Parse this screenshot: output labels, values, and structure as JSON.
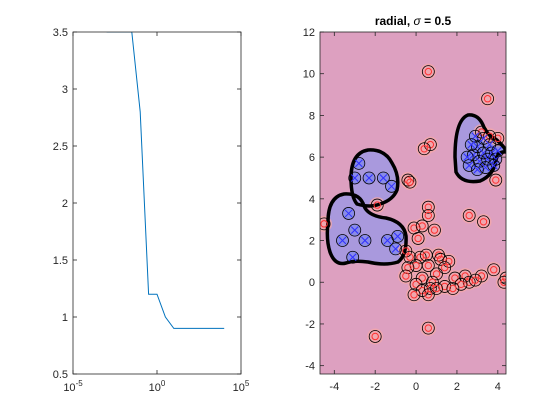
{
  "colors": {
    "line_series": "#0072bd",
    "axes": "#262626",
    "region_positive": "#dda0c0",
    "region_negative": "#a999dd",
    "blob_negative": "#6f7ff0",
    "blob_positive": "#f6a8a8",
    "marker_positive": "#ff3030",
    "marker_negative": "#3030ff",
    "contour": "#000000"
  },
  "chart_data": [
    {
      "type": "line",
      "xscale": "log",
      "xlim": [
        1e-05,
        100000.0
      ],
      "ylim": [
        0.5,
        3.5
      ],
      "xticks": [
        {
          "value": 1e-05,
          "base": "10",
          "exp": "-5"
        },
        {
          "value": 1,
          "base": "10",
          "exp": "0"
        },
        {
          "value": 100000.0,
          "base": "10",
          "exp": "5"
        }
      ],
      "yticks": [
        "0.5",
        "1",
        "1.5",
        "2",
        "2.5",
        "3",
        "3.5"
      ],
      "series": [
        {
          "x": [
            0.001,
            0.00316,
            0.01,
            0.0316,
            0.1,
            0.316,
            1,
            3.16,
            10,
            31.6,
            100,
            316,
            1000,
            3160,
            10000
          ],
          "y": [
            3.5,
            3.5,
            3.5,
            3.5,
            2.8,
            1.2,
            1.2,
            1.0,
            0.9,
            0.9,
            0.9,
            0.9,
            0.9,
            0.9,
            0.9
          ]
        }
      ]
    },
    {
      "type": "scatter",
      "title": "radial, σ = 0.5",
      "title_prefix": "radial,",
      "title_symbol": "σ",
      "title_suffix": "= 0.5",
      "xlim": [
        -4.7,
        4.4
      ],
      "ylim": [
        -4.4,
        12
      ],
      "xticks": [
        "-4",
        "-2",
        "0",
        "2",
        "4"
      ],
      "yticks": [
        "-4",
        "-2",
        "0",
        "2",
        "4",
        "6",
        "8",
        "10",
        "12"
      ],
      "negative_points": [
        [
          -2.8,
          5.7
        ],
        [
          -2.3,
          5.0
        ],
        [
          -3.0,
          5.0
        ],
        [
          -1.6,
          5.0
        ],
        [
          -1.2,
          4.6
        ],
        [
          -3.3,
          3.3
        ],
        [
          -3.0,
          2.5
        ],
        [
          -3.6,
          2.0
        ],
        [
          -2.5,
          2.0
        ],
        [
          -3.1,
          1.2
        ],
        [
          -1.4,
          2.0
        ],
        [
          -1.0,
          1.6
        ],
        [
          -0.9,
          2.2
        ],
        [
          2.6,
          5.6
        ],
        [
          2.8,
          6.1
        ],
        [
          3.0,
          6.5
        ],
        [
          3.1,
          5.8
        ],
        [
          3.3,
          6.9
        ],
        [
          3.3,
          6.2
        ],
        [
          3.5,
          5.9
        ],
        [
          3.4,
          5.5
        ],
        [
          3.7,
          6.2
        ],
        [
          3.9,
          5.9
        ],
        [
          2.9,
          7.0
        ],
        [
          2.5,
          6.0
        ],
        [
          3.8,
          5.6
        ],
        [
          3.0,
          5.4
        ],
        [
          3.6,
          6.6
        ],
        [
          2.7,
          6.6
        ],
        [
          4.0,
          6.3
        ]
      ],
      "positive_points": [
        [
          0.6,
          10.1
        ],
        [
          3.5,
          8.8
        ],
        [
          3.2,
          7.2
        ],
        [
          4.0,
          6.9
        ],
        [
          3.6,
          7.0
        ],
        [
          0.7,
          6.6
        ],
        [
          0.4,
          6.4
        ],
        [
          -0.4,
          4.9
        ],
        [
          -0.3,
          4.8
        ],
        [
          3.9,
          4.9
        ],
        [
          0.6,
          3.6
        ],
        [
          -1.9,
          3.7
        ],
        [
          -4.5,
          2.8
        ],
        [
          0.6,
          3.2
        ],
        [
          2.6,
          3.2
        ],
        [
          3.3,
          2.9
        ],
        [
          -0.1,
          2.6
        ],
        [
          0.3,
          2.7
        ],
        [
          0.9,
          2.5
        ],
        [
          0.1,
          2.1
        ],
        [
          -0.5,
          1.5
        ],
        [
          1.1,
          1.3
        ],
        [
          -0.3,
          1.2
        ],
        [
          0.2,
          1.2
        ],
        [
          0.5,
          1.3
        ],
        [
          1.2,
          1.1
        ],
        [
          1.6,
          1.0
        ],
        [
          0.0,
          0.8
        ],
        [
          0.6,
          0.8
        ],
        [
          1.4,
          0.7
        ],
        [
          -0.4,
          0.7
        ],
        [
          1.0,
          0.4
        ],
        [
          0.3,
          0.2
        ],
        [
          -0.5,
          0.3
        ],
        [
          0.8,
          0.0
        ],
        [
          0.0,
          -0.1
        ],
        [
          1.9,
          0.2
        ],
        [
          2.4,
          0.3
        ],
        [
          2.6,
          0.0
        ],
        [
          3.2,
          0.3
        ],
        [
          3.8,
          0.6
        ],
        [
          4.4,
          0.2
        ],
        [
          4.3,
          0.0
        ],
        [
          1.4,
          -0.2
        ],
        [
          2.2,
          -0.1
        ],
        [
          0.3,
          -0.4
        ],
        [
          0.7,
          -0.3
        ],
        [
          0.6,
          -0.6
        ],
        [
          -0.1,
          -0.6
        ],
        [
          1.0,
          -0.3
        ],
        [
          0.6,
          -2.2
        ],
        [
          -2.0,
          -2.6
        ],
        [
          2.9,
          0.1
        ],
        [
          1.8,
          -0.3
        ]
      ]
    }
  ]
}
